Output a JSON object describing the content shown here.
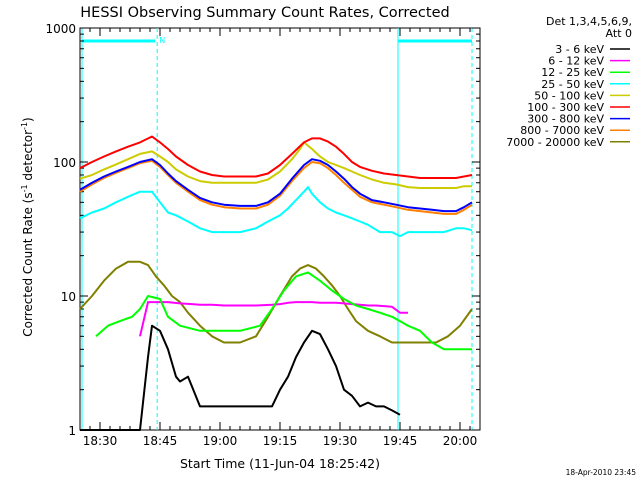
{
  "chart_data": {
    "type": "line",
    "title": "HESSI Observing Summary Count Rates, Corrected",
    "ylabel_main": "Corrected Count Rate (s",
    "ylabel_sup1": "-1",
    "ylabel_mid": " detector",
    "ylabel_sup2": "-1",
    "ylabel_end": ")",
    "xlabel": "Start Time (11-Jun-04 18:25:42)",
    "yscale": "log",
    "ylim": [
      1,
      1000
    ],
    "xlim_minutes_after_1825": [
      0,
      100
    ],
    "y_ticks": [
      {
        "value": 1,
        "label": "1"
      },
      {
        "value": 10,
        "label": "10"
      },
      {
        "value": 100,
        "label": "100"
      },
      {
        "value": 1000,
        "label": "1000"
      }
    ],
    "x_ticks": [
      {
        "minute": 5,
        "label": "18:30"
      },
      {
        "minute": 20,
        "label": "18:45"
      },
      {
        "minute": 35,
        "label": "19:00"
      },
      {
        "minute": 50,
        "label": "19:15"
      },
      {
        "minute": 65,
        "label": "19:30"
      },
      {
        "minute": 80,
        "label": "19:45"
      },
      {
        "minute": 95,
        "label": "20:00"
      }
    ],
    "legend_header": [
      "Det 1,3,4,5,6,9,",
      "Att 0"
    ],
    "legend_placement": "right",
    "footer": "18-Apr-2010 23:45",
    "markers": {
      "night_bar_label": "N",
      "vertical_lines_minutes": [
        0.5,
        19.3,
        79.5,
        98
      ]
    },
    "series": [
      {
        "name": "3 - 6 keV",
        "color": "#000000",
        "x": [
          0,
          4,
          8,
          12,
          15,
          17,
          18,
          20,
          22,
          24,
          25,
          27,
          30,
          33,
          36,
          39,
          42,
          45,
          48,
          50,
          52,
          54,
          56,
          58,
          60,
          62,
          64,
          66,
          68,
          70,
          72,
          74,
          76,
          78,
          80
        ],
        "y": [
          1,
          1,
          1,
          1,
          1,
          3.5,
          6,
          5.5,
          4,
          2.5,
          2.3,
          2.5,
          1.5,
          1.5,
          1.5,
          1.5,
          1.5,
          1.5,
          1.5,
          2,
          2.5,
          3.5,
          4.5,
          5.5,
          5.2,
          4,
          3,
          2,
          1.8,
          1.5,
          1.6,
          1.5,
          1.5,
          1.4,
          1.3
        ]
      },
      {
        "name": "6 - 12 keV",
        "color": "#ff00ff",
        "x": [
          15,
          17,
          20,
          22,
          25,
          28,
          30,
          33,
          36,
          40,
          44,
          48,
          50,
          52,
          54,
          56,
          58,
          60,
          62,
          64,
          66,
          68,
          70,
          72,
          74,
          76,
          78,
          80,
          82
        ],
        "y": [
          5,
          9,
          9,
          9,
          8.8,
          8.7,
          8.6,
          8.6,
          8.5,
          8.5,
          8.5,
          8.6,
          8.7,
          8.9,
          9,
          9,
          9,
          8.9,
          8.9,
          8.9,
          8.8,
          8.7,
          8.6,
          8.5,
          8.5,
          8.4,
          8.3,
          7.5,
          7.5
        ]
      },
      {
        "name": "12 - 25 keV",
        "color": "#00ff00",
        "x": [
          4,
          7,
          10,
          13,
          15,
          17,
          20,
          22,
          25,
          30,
          35,
          40,
          45,
          48,
          51,
          54,
          57,
          60,
          63,
          66,
          69,
          72,
          75,
          78,
          80,
          82,
          85,
          88,
          91,
          94,
          96,
          98
        ],
        "y": [
          5,
          6,
          6.5,
          7,
          8,
          10,
          9.5,
          7,
          6,
          5.5,
          5.5,
          5.5,
          6,
          8,
          11,
          14,
          15,
          13,
          11,
          9.5,
          8.5,
          8,
          7.5,
          7,
          6.5,
          6,
          5.5,
          4.5,
          4,
          4,
          4,
          4
        ]
      },
      {
        "name": "25 - 50 keV",
        "color": "#00ffff",
        "x": [
          0,
          3,
          6,
          9,
          12,
          15,
          18,
          20,
          22,
          24,
          27,
          30,
          33,
          36,
          40,
          44,
          47,
          50,
          52,
          54,
          56,
          57,
          58,
          60,
          62,
          64,
          66,
          68,
          70,
          72,
          75,
          78,
          80,
          82,
          85,
          88,
          91,
          94,
          96,
          98
        ],
        "y": [
          38,
          42,
          45,
          50,
          55,
          60,
          60,
          50,
          42,
          40,
          36,
          32,
          30,
          30,
          30,
          32,
          36,
          40,
          45,
          52,
          60,
          65,
          58,
          50,
          45,
          42,
          40,
          38,
          36,
          34,
          30,
          30,
          28,
          30,
          30,
          30,
          30,
          32,
          32,
          31
        ]
      },
      {
        "name": "50 - 100 keV",
        "color": "#cccc00",
        "x": [
          0,
          3,
          6,
          9,
          12,
          15,
          18,
          20,
          22,
          24,
          27,
          30,
          33,
          36,
          40,
          44,
          47,
          50,
          53,
          55,
          56,
          58,
          60,
          62,
          64,
          66,
          68,
          70,
          73,
          76,
          79,
          82,
          85,
          88,
          91,
          94,
          96,
          98
        ],
        "y": [
          75,
          80,
          88,
          96,
          105,
          115,
          120,
          110,
          100,
          88,
          78,
          72,
          70,
          70,
          70,
          70,
          74,
          85,
          105,
          125,
          140,
          125,
          110,
          100,
          95,
          90,
          85,
          80,
          74,
          70,
          68,
          65,
          64,
          64,
          64,
          64,
          66,
          66
        ]
      },
      {
        "name": "100 - 300 keV",
        "color": "#ff0000",
        "x": [
          0,
          3,
          6,
          9,
          12,
          15,
          18,
          20,
          22,
          24,
          27,
          30,
          33,
          36,
          40,
          44,
          47,
          50,
          53,
          56,
          58,
          60,
          62,
          64,
          66,
          68,
          70,
          73,
          76,
          79,
          82,
          85,
          88,
          91,
          94,
          96,
          98
        ],
        "y": [
          90,
          100,
          110,
          120,
          130,
          140,
          155,
          140,
          125,
          110,
          95,
          85,
          80,
          78,
          78,
          78,
          82,
          95,
          115,
          140,
          150,
          150,
          142,
          130,
          115,
          100,
          92,
          86,
          82,
          80,
          78,
          76,
          76,
          76,
          76,
          78,
          80
        ]
      },
      {
        "name": "300 - 800 keV",
        "color": "#0000ff",
        "x": [
          0,
          3,
          6,
          9,
          12,
          15,
          18,
          20,
          22,
          24,
          27,
          30,
          33,
          36,
          40,
          44,
          47,
          50,
          53,
          56,
          58,
          60,
          62,
          64,
          66,
          68,
          70,
          73,
          76,
          79,
          82,
          85,
          88,
          91,
          94,
          96,
          98
        ],
        "y": [
          62,
          70,
          78,
          85,
          92,
          100,
          105,
          95,
          82,
          72,
          62,
          54,
          50,
          48,
          47,
          47,
          50,
          58,
          75,
          95,
          105,
          102,
          95,
          85,
          75,
          65,
          58,
          52,
          50,
          48,
          46,
          45,
          44,
          43,
          43,
          46,
          50
        ]
      },
      {
        "name": "800 - 7000 keV",
        "color": "#ff8000",
        "x": [
          0,
          3,
          6,
          9,
          12,
          15,
          18,
          20,
          22,
          24,
          27,
          30,
          33,
          36,
          40,
          44,
          47,
          50,
          53,
          56,
          58,
          60,
          62,
          64,
          66,
          68,
          70,
          73,
          76,
          79,
          82,
          85,
          88,
          91,
          94,
          96,
          98
        ],
        "y": [
          60,
          68,
          76,
          83,
          90,
          98,
          102,
          92,
          80,
          70,
          60,
          52,
          48,
          46,
          45,
          45,
          48,
          56,
          72,
          90,
          100,
          98,
          90,
          80,
          70,
          62,
          55,
          50,
          48,
          46,
          44,
          43,
          42,
          41,
          41,
          44,
          48
        ]
      },
      {
        "name": "7000 - 20000 keV",
        "color": "#808000",
        "x": [
          0,
          3,
          6,
          9,
          12,
          15,
          17,
          19,
          21,
          23,
          25,
          27,
          30,
          33,
          36,
          40,
          44,
          47,
          50,
          53,
          55,
          57,
          59,
          61,
          63,
          65,
          67,
          69,
          72,
          75,
          78,
          80,
          83,
          86,
          89,
          92,
          95,
          98
        ],
        "y": [
          8,
          10,
          13,
          16,
          18,
          18,
          17,
          14,
          12,
          10,
          9,
          7.5,
          6,
          5,
          4.5,
          4.5,
          5,
          7,
          10,
          14,
          16,
          17,
          16,
          14,
          12,
          10,
          8,
          6.5,
          5.5,
          5,
          4.5,
          4.5,
          4.5,
          4.5,
          4.5,
          5,
          6,
          8
        ]
      }
    ]
  }
}
